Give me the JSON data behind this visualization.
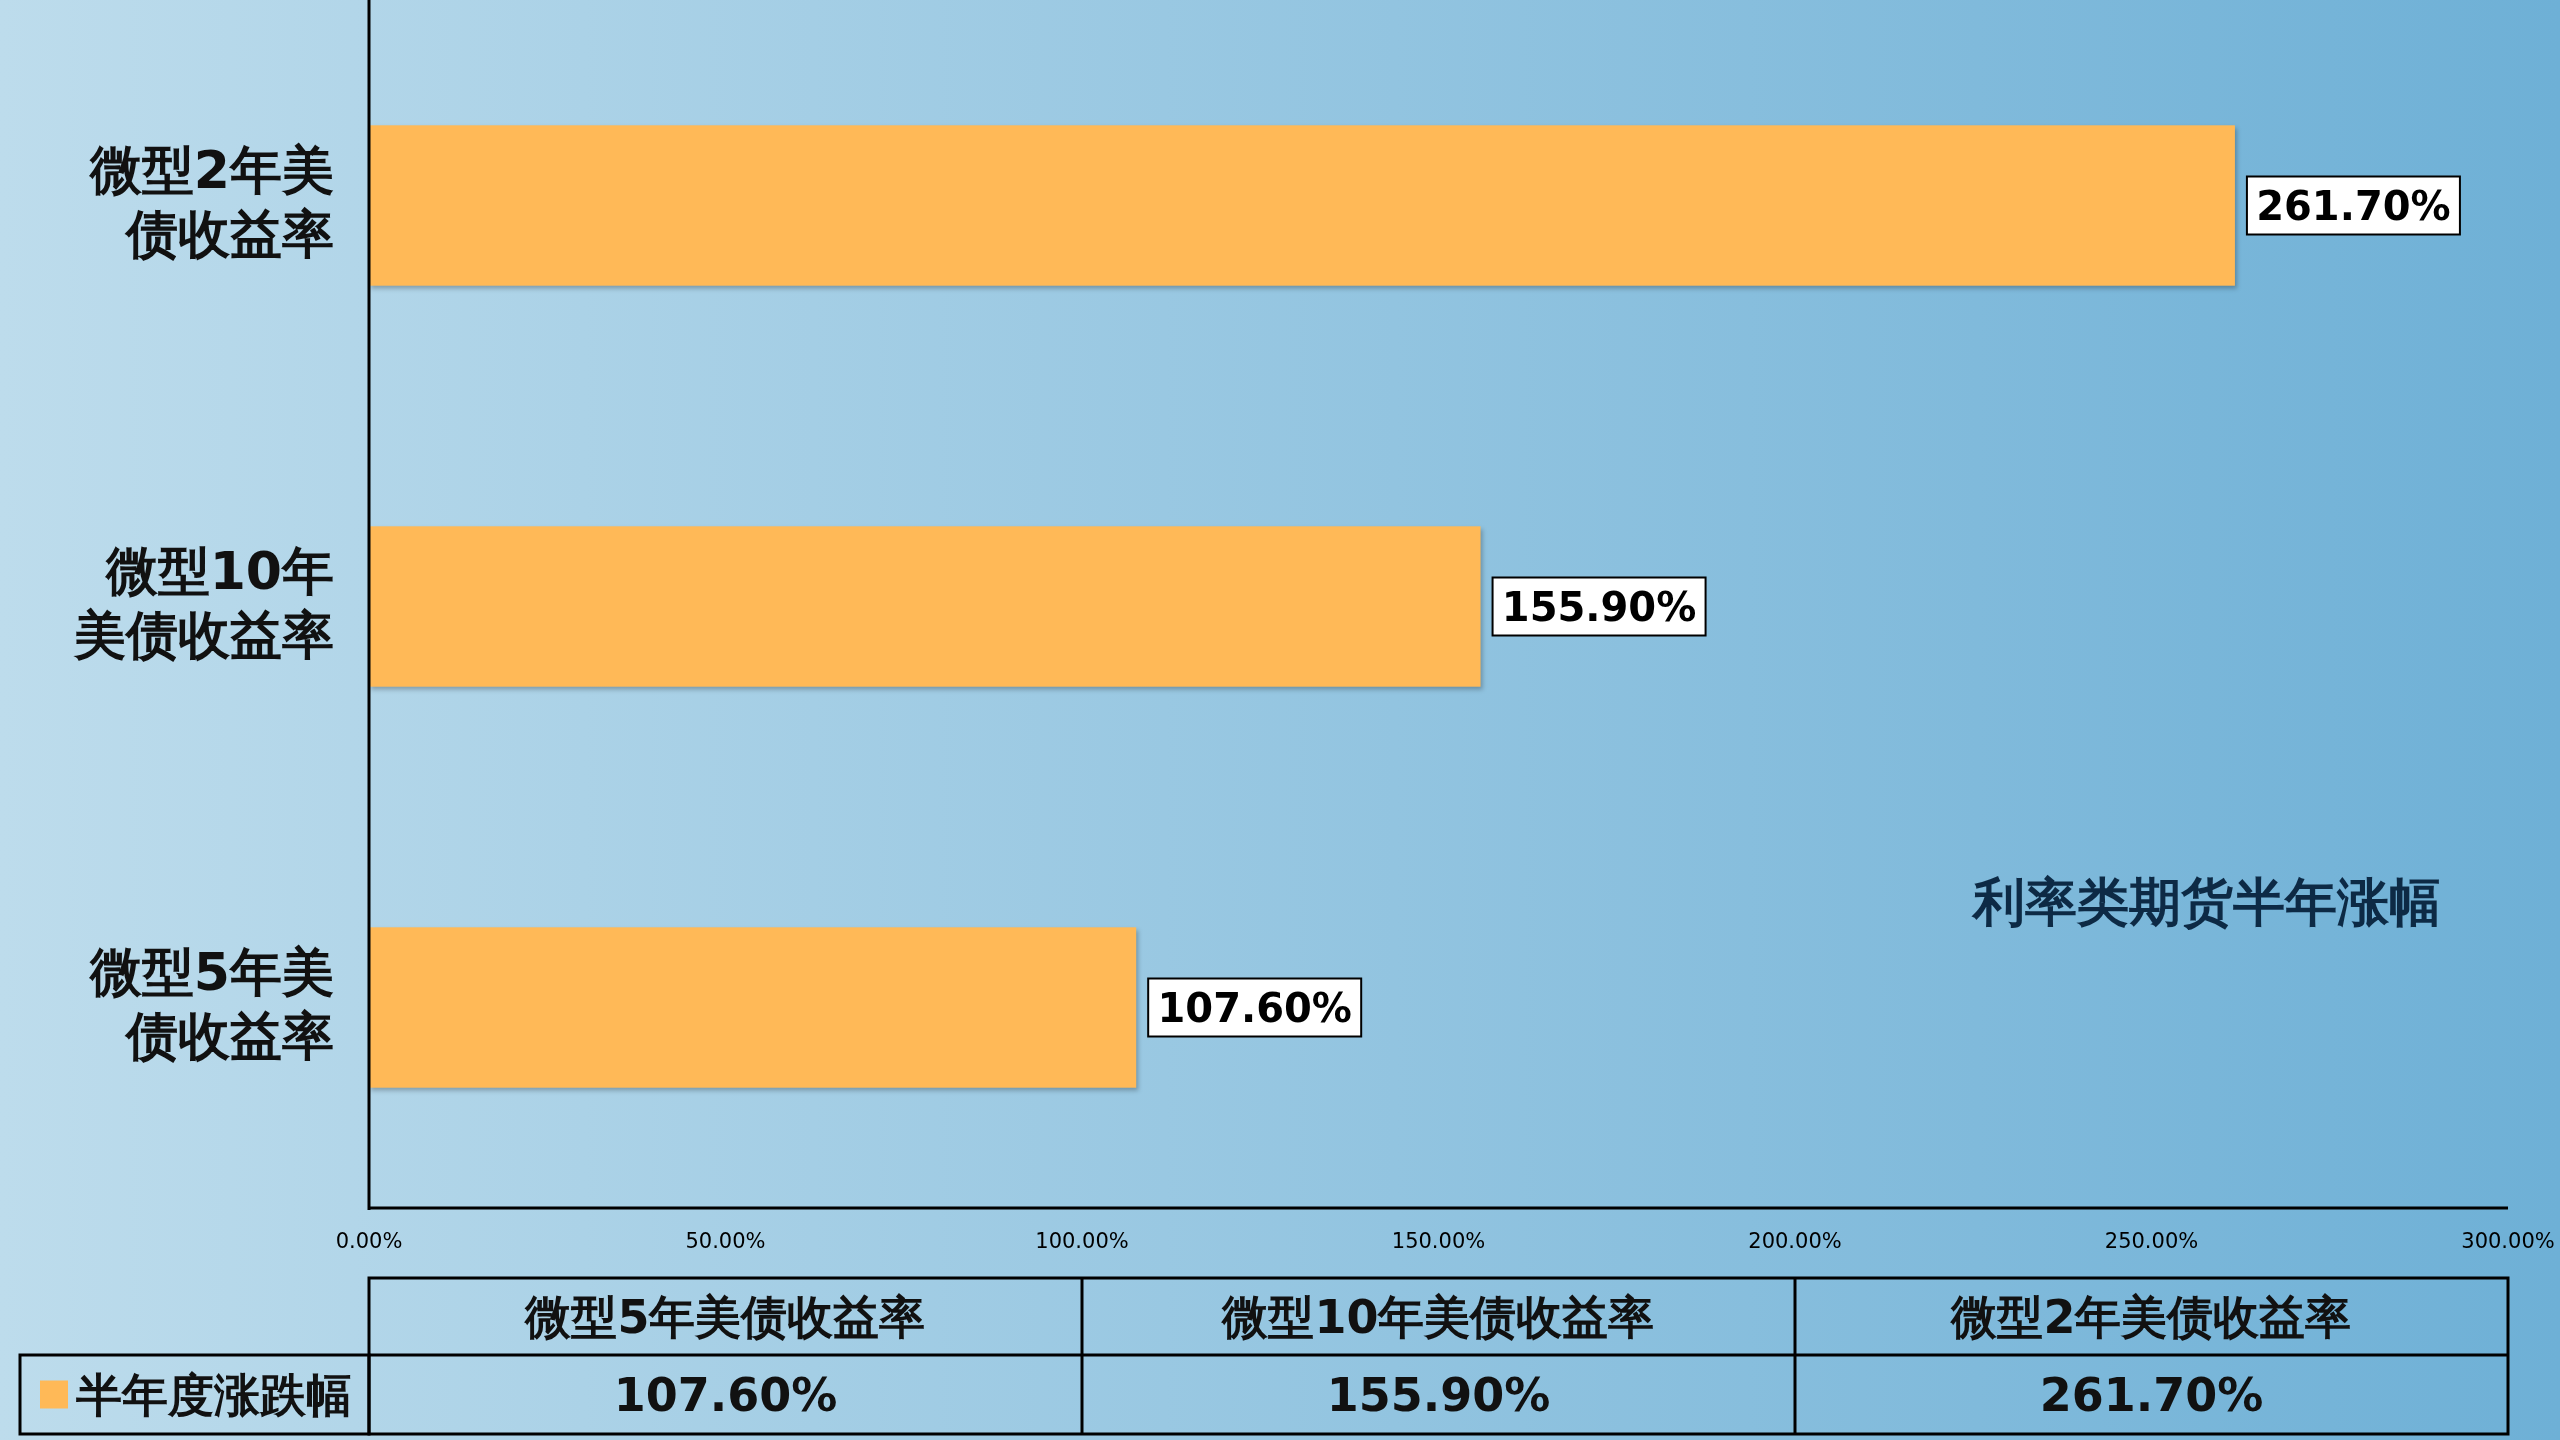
{
  "chart_data": {
    "type": "bar",
    "orientation": "horizontal",
    "title": "利率类期货半年涨幅",
    "categories": [
      "微型2年美债收益率",
      "微型10年美债收益率",
      "微型5年美债收益率"
    ],
    "series": [
      {
        "name": "半年度涨跌幅",
        "color": "#ffb957",
        "values": [
          261.7,
          155.9,
          107.6
        ],
        "value_labels": [
          "261.70%",
          "155.90%",
          "107.60%"
        ]
      }
    ],
    "xlim": [
      0,
      300
    ],
    "xticks": [
      {
        "value": 0,
        "label": "0.00%"
      },
      {
        "value": 50,
        "label": "50.00%"
      },
      {
        "value": 100,
        "label": "100.00%"
      },
      {
        "value": 150,
        "label": "150.00%"
      },
      {
        "value": 200,
        "label": "200.00%"
      },
      {
        "value": 250,
        "label": "250.00%"
      },
      {
        "value": 300,
        "label": "300.00%"
      }
    ],
    "legend": "bottom"
  }
}
